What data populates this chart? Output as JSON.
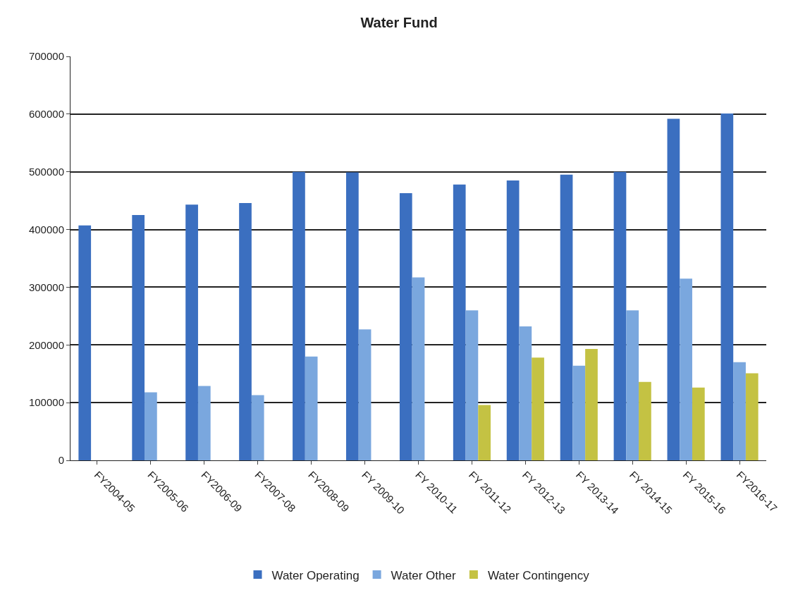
{
  "chart_data": {
    "type": "bar",
    "title": "Water Fund",
    "categories": [
      "FY2004-05",
      "FY2005-06",
      "FY2006-09",
      "FY2007-08",
      "FY2008-09",
      "FY 2009-10",
      "FY 2010-11",
      "FY 2011-12",
      "FY 2012-13",
      "FY 2013-14",
      "FY 2014-15",
      "FY 2015-16",
      "FY2016-17"
    ],
    "series": [
      {
        "name": "Water Operating",
        "color": "#3b6fc0",
        "values": [
          407000,
          425000,
          443000,
          446000,
          500000,
          499000,
          463000,
          478000,
          485000,
          495000,
          500000,
          592000,
          601000
        ]
      },
      {
        "name": "Water Other",
        "color": "#7aa7de",
        "values": [
          null,
          118000,
          129000,
          113000,
          180000,
          227000,
          317000,
          260000,
          232000,
          164000,
          260000,
          315000,
          170000
        ]
      },
      {
        "name": "Water Contingency",
        "color": "#c4c243",
        "values": [
          null,
          null,
          null,
          null,
          null,
          null,
          null,
          96000,
          178000,
          193000,
          136000,
          126000,
          151000
        ]
      }
    ],
    "ylim": [
      0,
      700000
    ],
    "yticks": [
      0,
      100000,
      200000,
      300000,
      400000,
      500000,
      600000,
      700000
    ],
    "grid": "y",
    "legend": "bottom"
  }
}
